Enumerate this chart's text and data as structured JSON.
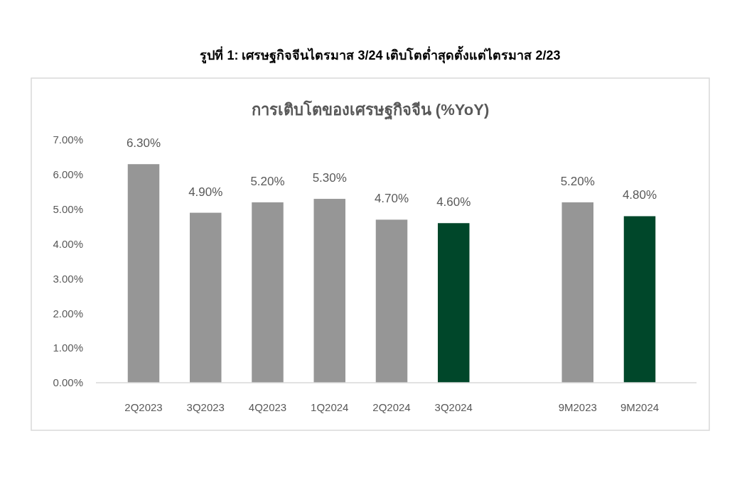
{
  "chart_data": {
    "type": "bar",
    "title": "รูปที่ 1: เศรษฐกิจจีนไตรมาส 3/24 เติบโตต่ำสุดตั้งแต่ไตรมาส 2/23",
    "subtitle": "การเติบโตของเศรษฐกิจจีน (%YoY)",
    "categories": [
      "2Q2023",
      "3Q2023",
      "4Q2023",
      "1Q2024",
      "2Q2024",
      "3Q2024",
      null,
      "9M2023",
      "9M2024"
    ],
    "values": [
      6.3,
      4.9,
      5.2,
      5.3,
      4.7,
      4.6,
      null,
      5.2,
      4.8
    ],
    "colors": [
      "#969696",
      "#969696",
      "#969696",
      "#969696",
      "#969696",
      "#00472a",
      null,
      "#969696",
      "#00472a"
    ],
    "value_labels": [
      "6.30%",
      "4.90%",
      "5.20%",
      "5.30%",
      "4.70%",
      "4.60%",
      null,
      "5.20%",
      "4.80%"
    ],
    "ylim": [
      0,
      7
    ],
    "yticks": [
      {
        "value": 0,
        "label": "0.00%"
      },
      {
        "value": 1,
        "label": "1.00%"
      },
      {
        "value": 2,
        "label": "2.00%"
      },
      {
        "value": 3,
        "label": "3.00%"
      },
      {
        "value": 4,
        "label": "4.00%"
      },
      {
        "value": 5,
        "label": "5.00%"
      },
      {
        "value": 6,
        "label": "6.00%"
      },
      {
        "value": 7,
        "label": "7.00%"
      }
    ],
    "grid": false
  }
}
